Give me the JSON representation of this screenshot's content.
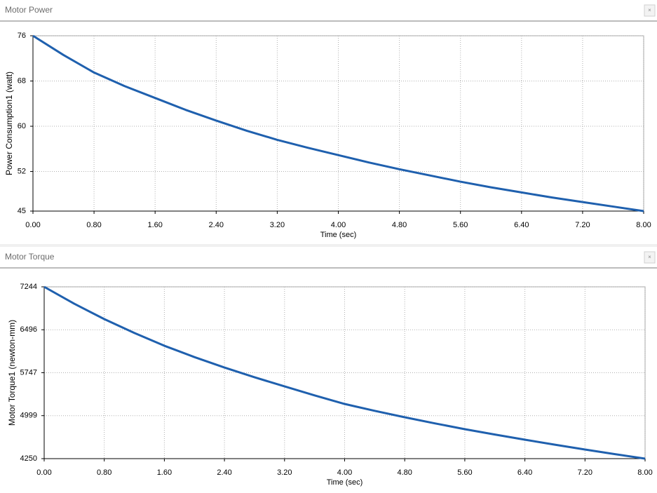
{
  "chart_data": [
    {
      "type": "line",
      "title": "Motor Power",
      "x_label": "Time (sec)",
      "y_label": "Power Consumption1 (watt)",
      "x": [
        0,
        0.4,
        0.8,
        1.2,
        1.6,
        2.0,
        2.4,
        2.8,
        3.2,
        3.6,
        4.0,
        4.4,
        4.8,
        5.2,
        5.6,
        6.0,
        6.4,
        6.8,
        7.2,
        7.6,
        8.0
      ],
      "values": [
        76,
        72.6,
        69.5,
        67.1,
        65.0,
        62.9,
        61.0,
        59.2,
        57.6,
        56.2,
        54.9,
        53.6,
        52.4,
        51.3,
        50.2,
        49.2,
        48.3,
        47.4,
        46.6,
        45.8,
        45
      ],
      "color": "#1f60ae",
      "xlim": [
        0,
        8
      ],
      "ylim": [
        45,
        76
      ],
      "xticks": [
        {
          "value": 0,
          "label": "0.00"
        },
        {
          "value": 0.8,
          "label": "0.80"
        },
        {
          "value": 1.6,
          "label": "1.60"
        },
        {
          "value": 2.4,
          "label": "2.40"
        },
        {
          "value": 3.2,
          "label": "3.20"
        },
        {
          "value": 4,
          "label": "4.00"
        },
        {
          "value": 4.8,
          "label": "4.80"
        },
        {
          "value": 5.6,
          "label": "5.60"
        },
        {
          "value": 6.4,
          "label": "6.40"
        },
        {
          "value": 7.2,
          "label": "7.20"
        },
        {
          "value": 8,
          "label": "8.00"
        }
      ],
      "yticks": [
        45,
        52,
        60,
        68,
        76
      ],
      "grid": true
    },
    {
      "type": "line",
      "title": "Motor Torque",
      "x_label": "Time (sec)",
      "y_label": "Motor Torque1 (newton-mm)",
      "x": [
        0,
        0.4,
        0.8,
        1.2,
        1.6,
        2.0,
        2.4,
        2.8,
        3.2,
        3.6,
        4.0,
        4.4,
        4.8,
        5.2,
        5.6,
        6.0,
        6.4,
        6.8,
        7.2,
        7.6,
        8.0
      ],
      "values": [
        7244,
        6950,
        6682,
        6440,
        6217,
        6020,
        5838,
        5668,
        5509,
        5352,
        5203,
        5083,
        4971,
        4865,
        4763,
        4670,
        4580,
        4493,
        4409,
        4328,
        4250
      ],
      "color": "#1f60ae",
      "xlim": [
        0,
        8
      ],
      "ylim": [
        4250,
        7244
      ],
      "xticks": [
        {
          "value": 0,
          "label": "0.00"
        },
        {
          "value": 0.8,
          "label": "0.80"
        },
        {
          "value": 1.6,
          "label": "1.60"
        },
        {
          "value": 2.4,
          "label": "2.40"
        },
        {
          "value": 3.2,
          "label": "3.20"
        },
        {
          "value": 4,
          "label": "4.00"
        },
        {
          "value": 4.8,
          "label": "4.80"
        },
        {
          "value": 5.6,
          "label": "5.60"
        },
        {
          "value": 6.4,
          "label": "6.40"
        },
        {
          "value": 7.2,
          "label": "7.20"
        },
        {
          "value": 8,
          "label": "8.00"
        }
      ],
      "yticks": [
        4250,
        4999,
        5747,
        6496,
        7244
      ],
      "grid": true
    }
  ]
}
